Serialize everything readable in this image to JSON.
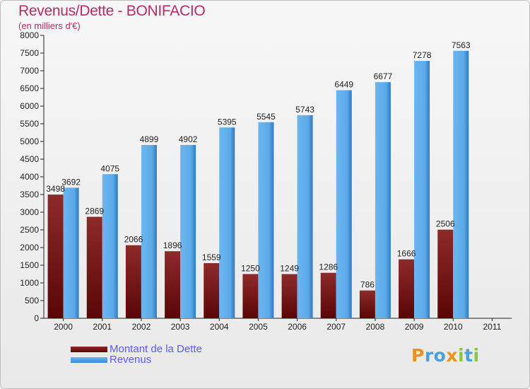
{
  "header": {
    "title": "Revenus/Dette - BONIFACIO",
    "subtitle": "(en milliers d'€)"
  },
  "chart_data": {
    "type": "bar",
    "title": "Revenus/Dette - BONIFACIO",
    "subtitle": "(en milliers d'€)",
    "categories": [
      "2000",
      "2001",
      "2002",
      "2003",
      "2004",
      "2005",
      "2006",
      "2007",
      "2008",
      "2009",
      "2010",
      "2011"
    ],
    "series": [
      {
        "name": "Montant de la Dette",
        "color": "#7a1414",
        "values": [
          3498,
          2869,
          2066,
          1896,
          1559,
          1250,
          1249,
          1286,
          786,
          1666,
          2506,
          null
        ],
        "labels": [
          "3498",
          "2869",
          "2066",
          "1896",
          "1559",
          "1250",
          "1249",
          "1286",
          "786",
          "1666",
          "2506",
          ""
        ]
      },
      {
        "name": "Revenus",
        "color": "#4da3e8",
        "values": [
          3692,
          4075,
          4899,
          4902,
          5395,
          5545,
          5743,
          6449,
          6677,
          7278,
          7563,
          null
        ],
        "labels": [
          "3692",
          "4075",
          "4899",
          "4902",
          "5395",
          "5545",
          "5743",
          "6449",
          "6677",
          "7278",
          "7563",
          ""
        ]
      }
    ],
    "ylim": [
      0,
      8000
    ],
    "yticks": [
      0,
      500,
      1000,
      1500,
      2000,
      2500,
      3000,
      3500,
      4000,
      4500,
      5000,
      5500,
      6000,
      6500,
      7000,
      7500,
      8000
    ],
    "ytick_labels": [
      "0",
      "500",
      "1000",
      "1500",
      "2000",
      "2500",
      "3000",
      "3500",
      "4000",
      "4500",
      "5000",
      "5500",
      "6000",
      "6500",
      "7000",
      "7500",
      "8000"
    ],
    "grid": false,
    "legend_position": "bottom-left"
  },
  "legend": {
    "items": [
      {
        "label": "Montant de la Dette",
        "color": "#7a1414"
      },
      {
        "label": "Revenus",
        "color": "#4da3e8"
      }
    ]
  },
  "logo": {
    "letters": [
      "P",
      "r",
      "o",
      "x",
      "i",
      "t",
      "i"
    ],
    "colors": [
      "#e8941c",
      "#4aa0dc",
      "#4aa0dc",
      "#e8941c",
      "#8cc63f",
      "#4aa0dc",
      "#8cc63f"
    ]
  }
}
